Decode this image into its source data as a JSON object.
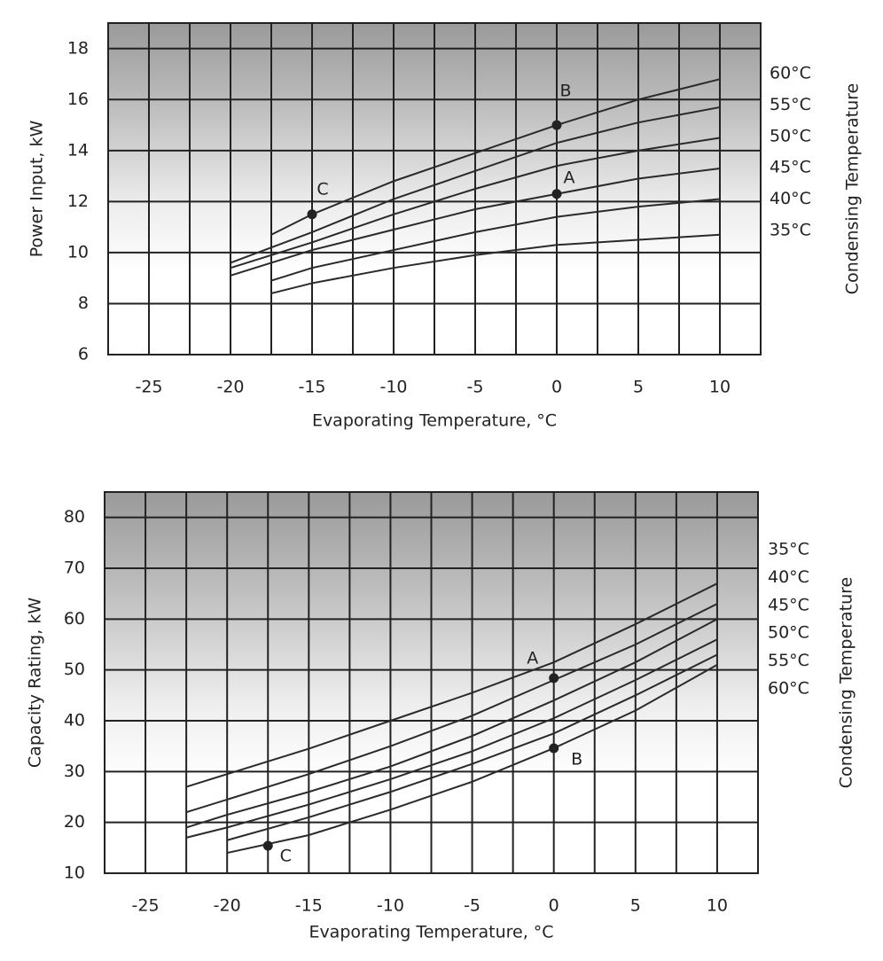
{
  "chart_data": [
    {
      "type": "line",
      "y_label": "Power Input, kW",
      "x_label": "Evaporating Temperature, °C",
      "legend_title": "Condensing Temperature",
      "x": [
        -20,
        -17.5,
        -15,
        -10,
        -5,
        0,
        5,
        10
      ],
      "series": [
        {
          "name": "60°C",
          "color": "#2a2a2a",
          "values": [
            null,
            10.7,
            11.5,
            12.8,
            13.9,
            15.0,
            16.0,
            16.8
          ]
        },
        {
          "name": "55°C",
          "color": "#2a2a2a",
          "values": [
            9.6,
            10.2,
            10.8,
            12.1,
            13.2,
            14.3,
            15.1,
            15.7
          ]
        },
        {
          "name": "50°C",
          "color": "#2a2a2a",
          "values": [
            9.4,
            9.9,
            10.4,
            11.5,
            12.5,
            13.4,
            14.0,
            14.5
          ]
        },
        {
          "name": "45°C",
          "color": "#2a2a2a",
          "values": [
            9.1,
            9.6,
            10.1,
            10.9,
            11.7,
            12.3,
            12.9,
            13.3
          ]
        },
        {
          "name": "40°C",
          "color": "#2a2a2a",
          "values": [
            null,
            8.9,
            9.4,
            10.1,
            10.8,
            11.4,
            11.8,
            12.1
          ]
        },
        {
          "name": "35°C",
          "color": "#2a2a2a",
          "values": [
            null,
            8.4,
            8.8,
            9.4,
            9.9,
            10.3,
            10.5,
            10.7
          ]
        }
      ],
      "annotations": [
        {
          "text": "B",
          "x": 0,
          "y": 15.0
        },
        {
          "text": "A",
          "x": 0,
          "y": 12.3
        },
        {
          "text": "C",
          "x": -15,
          "y": 11.5
        }
      ],
      "xlim": [
        -27.5,
        12.5
      ],
      "ylim": [
        6,
        19
      ],
      "xticks": [
        -25,
        -20,
        -15,
        -10,
        -5,
        0,
        5,
        10
      ],
      "yticks": [
        6,
        8,
        10,
        12,
        14,
        16,
        18
      ],
      "xgrid": [
        -25,
        -22.5,
        -20,
        -17.5,
        -15,
        -12.5,
        -10,
        -7.5,
        -5,
        -2.5,
        0,
        2.5,
        5,
        7.5,
        10
      ],
      "grid": true
    },
    {
      "type": "line",
      "y_label": "Capacity Rating, kW",
      "x_label": "Evaporating Temperature, °C",
      "legend_title": "Condensing Temperature",
      "x": [
        -22.5,
        -20,
        -15,
        -10,
        -5,
        0,
        5,
        10
      ],
      "series": [
        {
          "name": "35°C",
          "color": "#2a2a2a",
          "values": [
            27,
            29.5,
            34.5,
            40,
            45.5,
            51.5,
            59,
            67
          ]
        },
        {
          "name": "40°C",
          "color": "#2a2a2a",
          "values": [
            22,
            24.5,
            29.5,
            35,
            41,
            48,
            55,
            63
          ]
        },
        {
          "name": "45°C",
          "color": "#2a2a2a",
          "values": [
            19,
            21.5,
            26,
            31,
            37,
            44,
            51.5,
            60
          ]
        },
        {
          "name": "50°C",
          "color": "#2a2a2a",
          "values": [
            17,
            19,
            23.5,
            28.5,
            34,
            40.5,
            48,
            56
          ]
        },
        {
          "name": "55°C",
          "color": "#2a2a2a",
          "values": [
            null,
            16.5,
            21,
            26,
            31.5,
            37.5,
            45,
            53
          ]
        },
        {
          "name": "60°C",
          "color": "#2a2a2a",
          "values": [
            null,
            14,
            17.5,
            22.5,
            28,
            34.6,
            42,
            51
          ]
        }
      ],
      "annotations": [
        {
          "text": "A",
          "x": 0,
          "y": 48.4
        },
        {
          "text": "B",
          "x": 0,
          "y": 34.6
        },
        {
          "text": "C",
          "x": -17.5,
          "y": 15.4
        }
      ],
      "xlim": [
        -27.5,
        12.5
      ],
      "ylim": [
        10,
        85
      ],
      "xticks": [
        -25,
        -20,
        -15,
        -10,
        -5,
        0,
        5,
        10
      ],
      "yticks": [
        10,
        20,
        30,
        40,
        50,
        60,
        70,
        80
      ],
      "xgrid": [
        -25,
        -22.5,
        -20,
        -17.5,
        -15,
        -12.5,
        -10,
        -7.5,
        -5,
        -2.5,
        0,
        2.5,
        5,
        7.5,
        10
      ],
      "grid": true
    }
  ]
}
